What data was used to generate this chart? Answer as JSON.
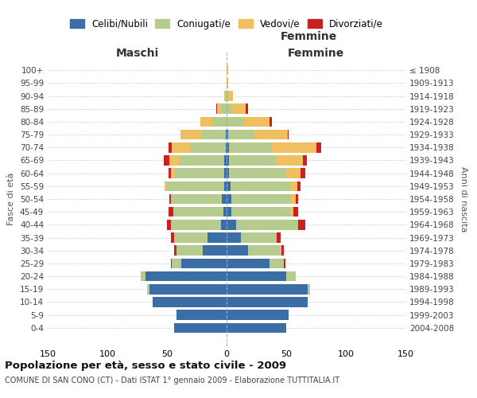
{
  "age_groups": [
    "0-4",
    "5-9",
    "10-14",
    "15-19",
    "20-24",
    "25-29",
    "30-34",
    "35-39",
    "40-44",
    "45-49",
    "50-54",
    "55-59",
    "60-64",
    "65-69",
    "70-74",
    "75-79",
    "80-84",
    "85-89",
    "90-94",
    "95-99",
    "100+"
  ],
  "birth_years": [
    "2004-2008",
    "1999-2003",
    "1994-1998",
    "1989-1993",
    "1984-1988",
    "1979-1983",
    "1974-1978",
    "1969-1973",
    "1964-1968",
    "1959-1963",
    "1954-1958",
    "1949-1953",
    "1944-1948",
    "1939-1943",
    "1934-1938",
    "1929-1933",
    "1924-1928",
    "1919-1923",
    "1914-1918",
    "1909-1913",
    "≤ 1908"
  ],
  "male": {
    "celibi": [
      44,
      42,
      62,
      65,
      68,
      38,
      20,
      16,
      5,
      3,
      4,
      2,
      2,
      2,
      1,
      1,
      0,
      0,
      0,
      0,
      0
    ],
    "coniugati": [
      0,
      0,
      0,
      2,
      4,
      8,
      22,
      28,
      42,
      42,
      42,
      48,
      42,
      38,
      30,
      20,
      12,
      5,
      1,
      0,
      0
    ],
    "vedovi": [
      0,
      0,
      0,
      0,
      0,
      0,
      0,
      0,
      0,
      0,
      1,
      2,
      3,
      8,
      15,
      18,
      10,
      3,
      1,
      0,
      0
    ],
    "divorziati": [
      0,
      0,
      0,
      0,
      0,
      1,
      2,
      3,
      3,
      4,
      1,
      0,
      2,
      5,
      3,
      0,
      0,
      1,
      0,
      0,
      0
    ]
  },
  "female": {
    "nubili": [
      50,
      52,
      68,
      68,
      50,
      36,
      18,
      12,
      8,
      4,
      4,
      3,
      2,
      2,
      2,
      1,
      0,
      0,
      0,
      0,
      0
    ],
    "coniugate": [
      0,
      0,
      0,
      2,
      8,
      12,
      28,
      30,
      52,
      50,
      50,
      50,
      48,
      40,
      35,
      22,
      14,
      4,
      1,
      0,
      0
    ],
    "vedove": [
      0,
      0,
      0,
      0,
      0,
      0,
      0,
      0,
      0,
      2,
      4,
      6,
      12,
      22,
      38,
      28,
      22,
      12,
      4,
      1,
      1
    ],
    "divorziate": [
      0,
      0,
      0,
      0,
      0,
      1,
      2,
      3,
      6,
      4,
      2,
      3,
      4,
      3,
      4,
      1,
      2,
      2,
      0,
      0,
      0
    ]
  },
  "colors": {
    "celibi": "#3a6ea5",
    "coniugati": "#b5cc8e",
    "vedovi": "#f0c060",
    "divorziati": "#cc2020"
  },
  "xlim": 150,
  "title": "Popolazione per età, sesso e stato civile - 2009",
  "subtitle": "COMUNE DI SAN CONO (CT) - Dati ISTAT 1° gennaio 2009 - Elaborazione TUTTITALIA.IT",
  "xlabel_left": "Maschi",
  "xlabel_right": "Femmine",
  "ylabel_left": "Fasce di età",
  "ylabel_right": "Anni di nascita",
  "background_color": "#ffffff",
  "grid_color": "#cccccc"
}
